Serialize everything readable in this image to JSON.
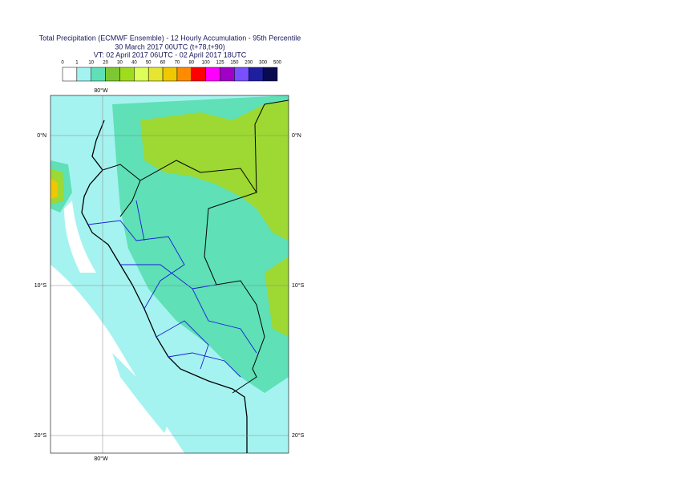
{
  "title_lines": [
    "Total Precipitation (ECMWF Ensemble) - 12 Hourly Accumulation - 95th Percentile",
    "30 March 2017 00UTC (t+78,t+90)",
    "VT: 02 April 2017 06UTC - 02 April 2017 18UTC"
  ],
  "colorbar": {
    "labels": [
      "0",
      "1",
      "10",
      "20",
      "30",
      "40",
      "50",
      "60",
      "70",
      "80",
      "100",
      "125",
      "150",
      "200",
      "300",
      "500"
    ],
    "colors": [
      "#ffffff",
      "#a5f3f0",
      "#5fe0b6",
      "#7dc832",
      "#a0dc1e",
      "#dcff5a",
      "#e6e632",
      "#f0c800",
      "#ff8c00",
      "#ff0000",
      "#ff00ff",
      "#a000c8",
      "#7850ff",
      "#1e1ea0",
      "#0a0a50"
    ]
  },
  "grid": {
    "meridians": [
      {
        "label": "80°W"
      }
    ],
    "parallels": [
      {
        "label": "0°N"
      },
      {
        "label": "10°S"
      },
      {
        "label": "20°S"
      }
    ]
  }
}
